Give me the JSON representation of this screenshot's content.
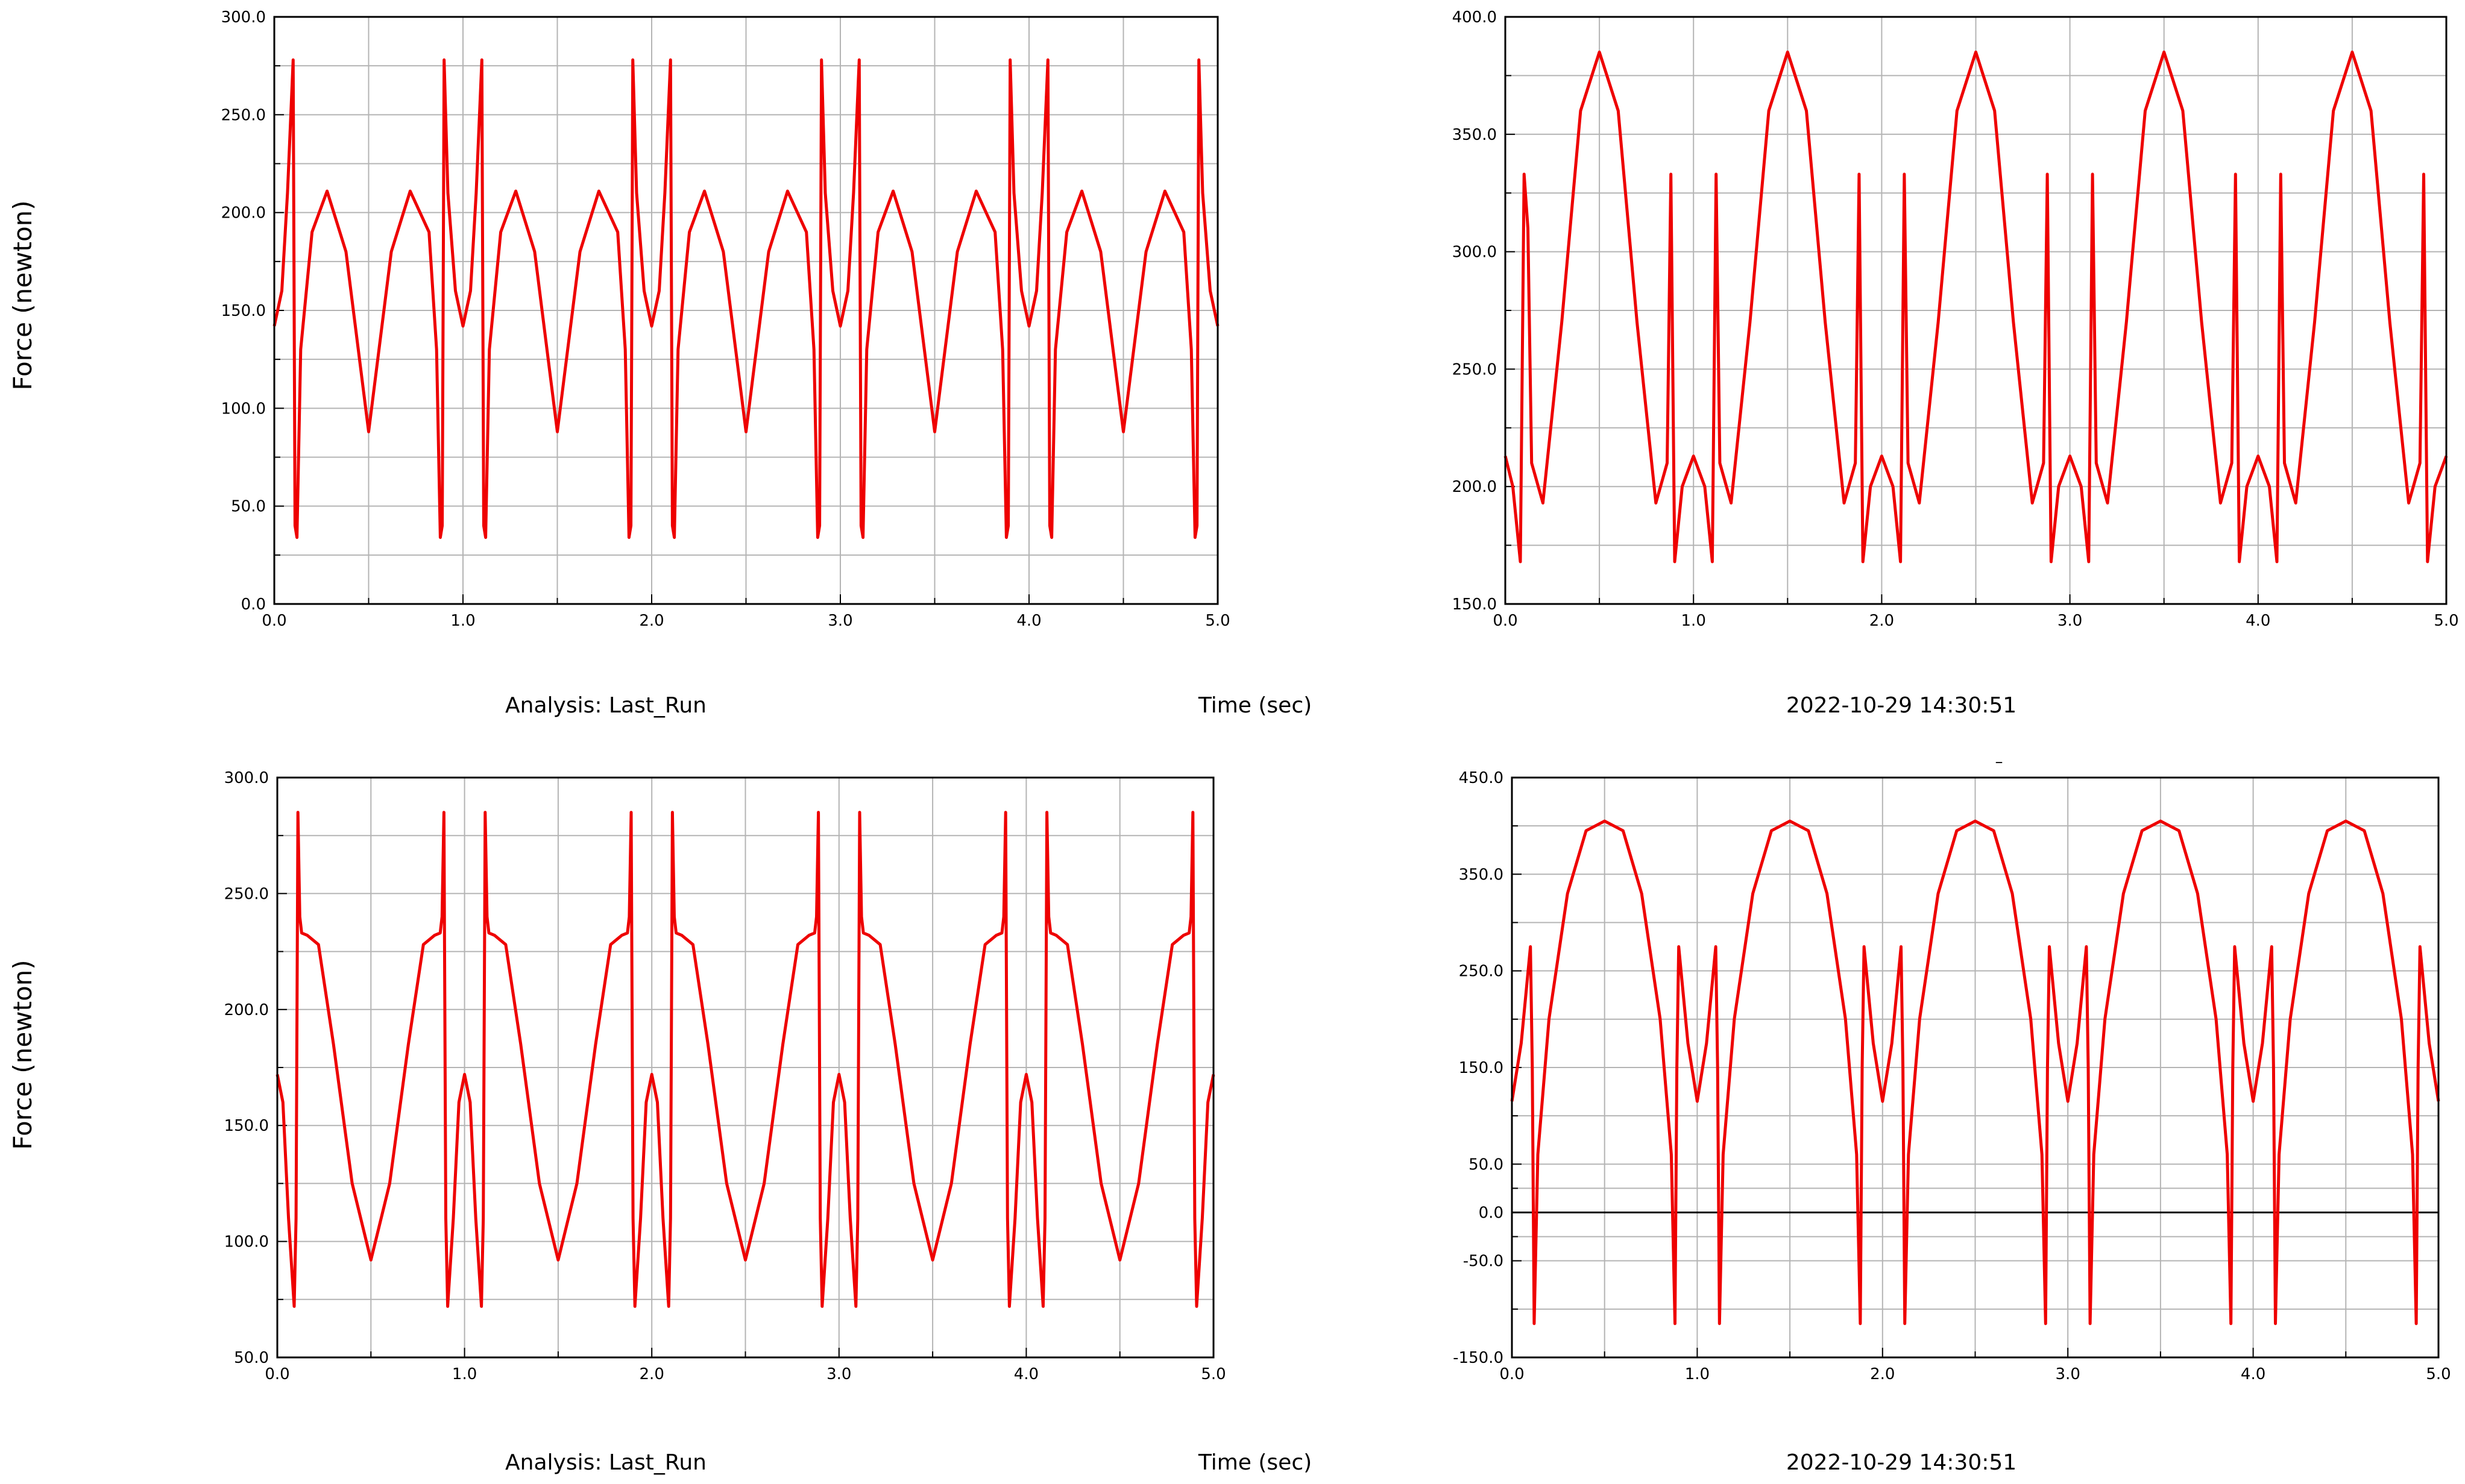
{
  "footers": {
    "analysis": "Analysis:  Last_Run",
    "time_label": "Time (sec)",
    "timestamp": "2022-10-29 14:30:51"
  },
  "left_ylabel": "Force (newton)",
  "tiny_marker": "–",
  "colors": {
    "series": "#ee0000",
    "grid": "#b4b4b4",
    "zero_line": "#000000",
    "frame": "#000000"
  },
  "chart_data": [
    {
      "type": "line",
      "title": "",
      "xlabel": "Time (sec)",
      "ylabel": "Force (newton)",
      "xlim": [
        0,
        5
      ],
      "ylim": [
        0,
        300
      ],
      "xticks": [
        "0.0",
        "1.0",
        "2.0",
        "3.0",
        "4.0",
        "5.0"
      ],
      "yticks": [
        "0.0",
        "50.0",
        "100.0",
        "150.0",
        "200.0",
        "250.0",
        "300.0"
      ],
      "grid": true,
      "legend": "none",
      "zero_line": false,
      "series": [
        {
          "color": "#ee0000",
          "x": [
            0.0,
            0.04,
            0.07,
            0.1,
            0.11,
            0.12,
            0.14,
            0.2,
            0.28,
            0.38,
            0.5,
            0.62,
            0.72,
            0.82,
            0.86,
            0.88,
            0.89,
            0.9,
            0.92,
            0.96,
            1.0,
            1.04,
            1.07,
            1.1,
            1.11,
            1.12,
            1.14,
            1.2,
            1.28,
            1.38,
            1.5,
            1.62,
            1.72,
            1.82,
            1.86,
            1.88,
            1.89,
            1.9,
            1.92,
            1.96,
            2.0,
            2.04,
            2.07,
            2.1,
            2.11,
            2.12,
            2.14,
            2.2,
            2.28,
            2.38,
            2.5,
            2.62,
            2.72,
            2.82,
            2.86,
            2.88,
            2.89,
            2.9,
            2.92,
            2.96,
            3.0,
            3.04,
            3.07,
            3.1,
            3.11,
            3.12,
            3.14,
            3.2,
            3.28,
            3.38,
            3.5,
            3.62,
            3.72,
            3.82,
            3.86,
            3.88,
            3.89,
            3.9,
            3.92,
            3.96,
            4.0,
            4.04,
            4.07,
            4.1,
            4.11,
            4.12,
            4.14,
            4.2,
            4.28,
            4.38,
            4.5,
            4.62,
            4.72,
            4.82,
            4.86,
            4.88,
            4.89,
            4.9,
            4.92,
            4.96,
            5.0
          ],
          "y": [
            142,
            160,
            210,
            278,
            40,
            34,
            130,
            190,
            211,
            180,
            88,
            180,
            211,
            190,
            130,
            34,
            40,
            278,
            210,
            160,
            142,
            160,
            210,
            278,
            40,
            34,
            130,
            190,
            211,
            180,
            88,
            180,
            211,
            190,
            130,
            34,
            40,
            278,
            210,
            160,
            142,
            160,
            210,
            278,
            40,
            34,
            130,
            190,
            211,
            180,
            88,
            180,
            211,
            190,
            130,
            34,
            40,
            278,
            210,
            160,
            142,
            160,
            210,
            278,
            40,
            34,
            130,
            190,
            211,
            180,
            88,
            180,
            211,
            190,
            130,
            34,
            40,
            278,
            210,
            160,
            142,
            160,
            210,
            278,
            40,
            34,
            130,
            190,
            211,
            180,
            88,
            180,
            211,
            190,
            130,
            34,
            40,
            278,
            210,
            160,
            142
          ]
        }
      ]
    },
    {
      "type": "line",
      "title": "",
      "xlabel": "",
      "ylabel": "",
      "xlim": [
        0,
        5
      ],
      "ylim": [
        150,
        400
      ],
      "xticks": [
        "0.0",
        "1.0",
        "2.0",
        "3.0",
        "4.0",
        "5.0"
      ],
      "yticks": [
        "150.0",
        "200.0",
        "250.0",
        "300.0",
        "350.0",
        "400.0"
      ],
      "grid": true,
      "legend": "none",
      "zero_line": false,
      "series": [
        {
          "color": "#ee0000",
          "x": [
            0.0,
            0.04,
            0.08,
            0.1,
            0.12,
            0.14,
            0.2,
            0.3,
            0.4,
            0.5,
            0.6,
            0.7,
            0.8,
            0.86,
            0.88,
            0.9,
            0.94,
            1.0,
            1.06,
            1.1,
            1.12,
            1.14,
            1.2,
            1.3,
            1.4,
            1.5,
            1.6,
            1.7,
            1.8,
            1.86,
            1.88,
            1.9,
            1.94,
            2.0,
            2.06,
            2.1,
            2.12,
            2.14,
            2.2,
            2.3,
            2.4,
            2.5,
            2.6,
            2.7,
            2.8,
            2.86,
            2.88,
            2.9,
            2.94,
            3.0,
            3.06,
            3.1,
            3.12,
            3.14,
            3.2,
            3.3,
            3.4,
            3.5,
            3.6,
            3.7,
            3.8,
            3.86,
            3.88,
            3.9,
            3.94,
            4.0,
            4.06,
            4.1,
            4.12,
            4.14,
            4.2,
            4.3,
            4.4,
            4.5,
            4.6,
            4.7,
            4.8,
            4.86,
            4.88,
            4.9,
            4.94,
            5.0
          ],
          "y": [
            213,
            200,
            168,
            333,
            310,
            210,
            193,
            270,
            360,
            385,
            360,
            270,
            193,
            210,
            333,
            168,
            200,
            213,
            200,
            168,
            333,
            210,
            193,
            270,
            360,
            385,
            360,
            270,
            193,
            210,
            333,
            168,
            200,
            213,
            200,
            168,
            333,
            210,
            193,
            270,
            360,
            385,
            360,
            270,
            193,
            210,
            333,
            168,
            200,
            213,
            200,
            168,
            333,
            210,
            193,
            270,
            360,
            385,
            360,
            270,
            193,
            210,
            333,
            168,
            200,
            213,
            200,
            168,
            333,
            210,
            193,
            270,
            360,
            385,
            360,
            270,
            193,
            210,
            333,
            168,
            200,
            213
          ]
        }
      ]
    },
    {
      "type": "line",
      "title": "",
      "xlabel": "Time (sec)",
      "ylabel": "Force (newton)",
      "xlim": [
        0,
        5
      ],
      "ylim": [
        50,
        300
      ],
      "xticks": [
        "0.0",
        "1.0",
        "2.0",
        "3.0",
        "4.0",
        "5.0"
      ],
      "yticks": [
        "50.0",
        "100.0",
        "150.0",
        "200.0",
        "250.0",
        "300.0"
      ],
      "grid": true,
      "legend": "none",
      "zero_line": false,
      "series": [
        {
          "color": "#ee0000",
          "x": [
            0.0,
            0.03,
            0.06,
            0.09,
            0.1,
            0.11,
            0.12,
            0.13,
            0.16,
            0.22,
            0.3,
            0.4,
            0.5,
            0.6,
            0.7,
            0.78,
            0.84,
            0.87,
            0.88,
            0.89,
            0.9,
            0.91,
            0.94,
            0.97,
            1.0,
            1.03,
            1.06,
            1.09,
            1.1,
            1.11,
            1.12,
            1.13,
            1.16,
            1.22,
            1.3,
            1.4,
            1.5,
            1.6,
            1.7,
            1.78,
            1.84,
            1.87,
            1.88,
            1.89,
            1.9,
            1.91,
            1.94,
            1.97,
            2.0,
            2.03,
            2.06,
            2.09,
            2.1,
            2.11,
            2.12,
            2.13,
            2.16,
            2.22,
            2.3,
            2.4,
            2.5,
            2.6,
            2.7,
            2.78,
            2.84,
            2.87,
            2.88,
            2.89,
            2.9,
            2.91,
            2.94,
            2.97,
            3.0,
            3.03,
            3.06,
            3.09,
            3.1,
            3.11,
            3.12,
            3.13,
            3.16,
            3.22,
            3.3,
            3.4,
            3.5,
            3.6,
            3.7,
            3.78,
            3.84,
            3.87,
            3.88,
            3.89,
            3.9,
            3.91,
            3.94,
            3.97,
            4.0,
            4.03,
            4.06,
            4.09,
            4.1,
            4.11,
            4.12,
            4.13,
            4.16,
            4.22,
            4.3,
            4.4,
            4.5,
            4.6,
            4.7,
            4.78,
            4.84,
            4.87,
            4.88,
            4.89,
            4.9,
            4.91,
            4.94,
            4.97,
            5.0
          ],
          "y": [
            172,
            160,
            110,
            72,
            110,
            285,
            240,
            233,
            232,
            228,
            185,
            125,
            92,
            125,
            185,
            228,
            232,
            233,
            240,
            285,
            110,
            72,
            110,
            160,
            172,
            160,
            110,
            72,
            110,
            285,
            240,
            233,
            232,
            228,
            185,
            125,
            92,
            125,
            185,
            228,
            232,
            233,
            240,
            285,
            110,
            72,
            110,
            160,
            172,
            160,
            110,
            72,
            110,
            285,
            240,
            233,
            232,
            228,
            185,
            125,
            92,
            125,
            185,
            228,
            232,
            233,
            240,
            285,
            110,
            72,
            110,
            160,
            172,
            160,
            110,
            72,
            110,
            285,
            240,
            233,
            232,
            228,
            185,
            125,
            92,
            125,
            185,
            228,
            232,
            233,
            240,
            285,
            110,
            72,
            110,
            160,
            172,
            160,
            110,
            72,
            110,
            285,
            240,
            233,
            232,
            228,
            185,
            125,
            92,
            125,
            185,
            228,
            232,
            233,
            240,
            285,
            110,
            72,
            110,
            160,
            172
          ]
        }
      ]
    },
    {
      "type": "line",
      "title": "",
      "xlabel": "",
      "ylabel": "",
      "xlim": [
        0,
        5
      ],
      "ylim": [
        -150,
        450
      ],
      "xticks": [
        "0.0",
        "1.0",
        "2.0",
        "3.0",
        "4.0",
        "5.0"
      ],
      "yticks": [
        "-150.0",
        "-50.0",
        "0.0",
        "50.0",
        "150.0",
        "250.0",
        "350.0",
        "450.0"
      ],
      "grid": true,
      "legend": "none",
      "zero_line": true,
      "series": [
        {
          "color": "#ee0000",
          "x": [
            0.0,
            0.05,
            0.1,
            0.11,
            0.12,
            0.14,
            0.2,
            0.3,
            0.4,
            0.5,
            0.6,
            0.7,
            0.8,
            0.86,
            0.88,
            0.89,
            0.9,
            0.95,
            1.0,
            1.05,
            1.1,
            1.11,
            1.12,
            1.14,
            1.2,
            1.3,
            1.4,
            1.5,
            1.6,
            1.7,
            1.8,
            1.86,
            1.88,
            1.89,
            1.9,
            1.95,
            2.0,
            2.05,
            2.1,
            2.11,
            2.12,
            2.14,
            2.2,
            2.3,
            2.4,
            2.5,
            2.6,
            2.7,
            2.8,
            2.86,
            2.88,
            2.89,
            2.9,
            2.95,
            3.0,
            3.05,
            3.1,
            3.11,
            3.12,
            3.14,
            3.2,
            3.3,
            3.4,
            3.5,
            3.6,
            3.7,
            3.8,
            3.86,
            3.88,
            3.89,
            3.9,
            3.95,
            4.0,
            4.05,
            4.1,
            4.11,
            4.12,
            4.14,
            4.2,
            4.3,
            4.4,
            4.5,
            4.6,
            4.7,
            4.8,
            4.86,
            4.88,
            4.89,
            4.9,
            4.95,
            5.0
          ],
          "y": [
            115,
            175,
            275,
            150,
            -115,
            60,
            200,
            330,
            395,
            405,
            395,
            330,
            200,
            60,
            -115,
            150,
            275,
            175,
            115,
            175,
            275,
            150,
            -115,
            60,
            200,
            330,
            395,
            405,
            395,
            330,
            200,
            60,
            -115,
            150,
            275,
            175,
            115,
            175,
            275,
            150,
            -115,
            60,
            200,
            330,
            395,
            405,
            395,
            330,
            200,
            60,
            -115,
            150,
            275,
            175,
            115,
            175,
            275,
            150,
            -115,
            60,
            200,
            330,
            395,
            405,
            395,
            330,
            200,
            60,
            -115,
            150,
            275,
            175,
            115,
            175,
            275,
            150,
            -115,
            60,
            200,
            330,
            395,
            405,
            395,
            330,
            200,
            60,
            -115,
            150,
            275,
            175,
            115
          ]
        }
      ]
    }
  ]
}
